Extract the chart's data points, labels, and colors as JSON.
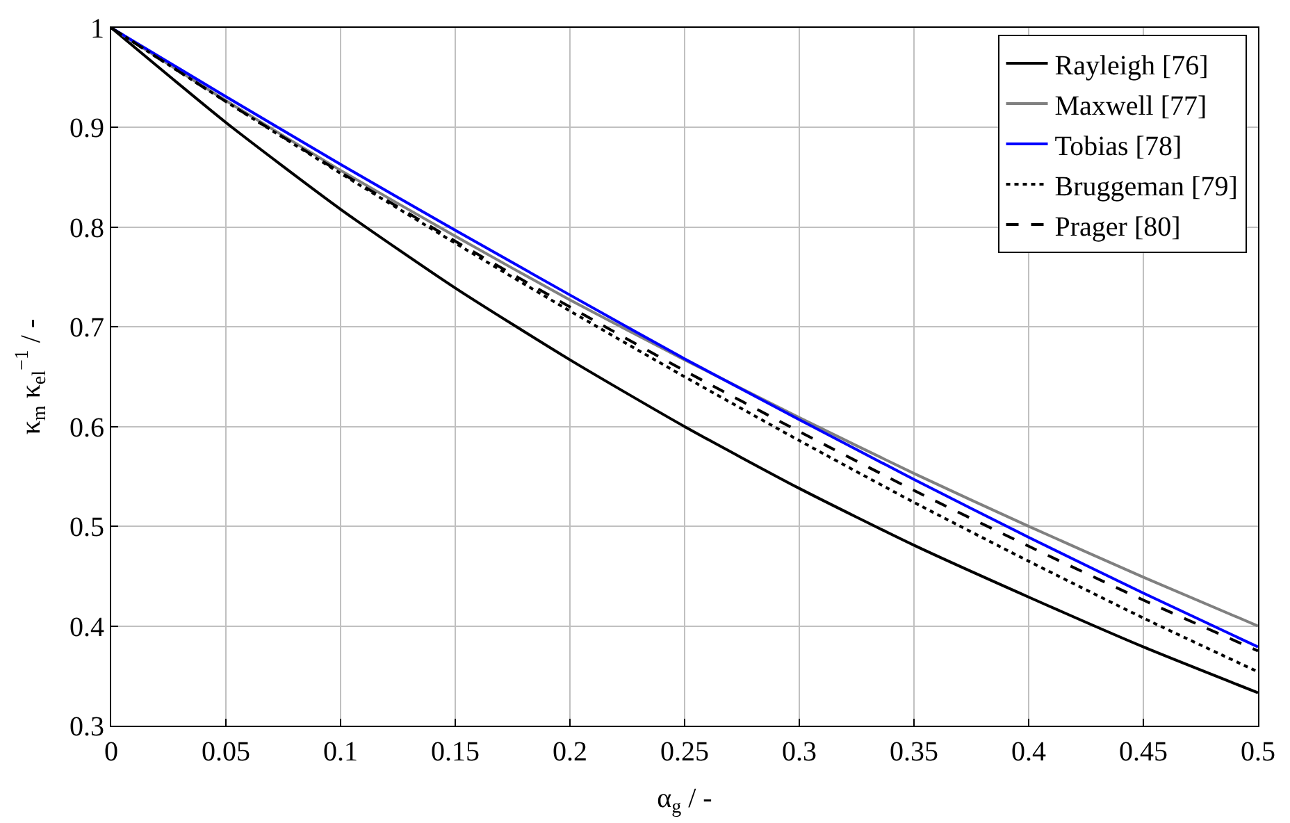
{
  "chart_data": {
    "type": "line",
    "xlabel": "α$_{g}$ / -",
    "ylabel": "κ$_{m}$ κ$_{el}$$^{−1}$ / -",
    "x": [
      0,
      0.05,
      0.1,
      0.15,
      0.2,
      0.25,
      0.3,
      0.35,
      0.4,
      0.45,
      0.5
    ],
    "series": [
      {
        "name": "Rayleigh [76]",
        "color": "#000000",
        "line_style": "solid",
        "values": [
          1,
          0.905,
          0.818,
          0.739,
          0.667,
          0.6,
          0.538,
          0.481,
          0.429,
          0.379,
          0.333
        ]
      },
      {
        "name": "Maxwell [77]",
        "color": "#808080",
        "line_style": "solid",
        "values": [
          1,
          0.927,
          0.857,
          0.791,
          0.727,
          0.667,
          0.609,
          0.553,
          0.5,
          0.449,
          0.4
        ]
      },
      {
        "name": "Tobias [78]",
        "color": "#0000ff",
        "line_style": "solid",
        "values": [
          1,
          0.931,
          0.863,
          0.797,
          0.732,
          0.668,
          0.607,
          0.547,
          0.489,
          0.433,
          0.379
        ]
      },
      {
        "name": "Bruggeman [79]",
        "color": "#000000",
        "line_style": "dotted",
        "values": [
          1,
          0.926,
          0.854,
          0.784,
          0.716,
          0.65,
          0.586,
          0.524,
          0.465,
          0.408,
          0.354
        ]
      },
      {
        "name": "Prager [80]",
        "color": "#000000",
        "line_style": "dashed",
        "values": [
          1,
          0.926,
          0.855,
          0.786,
          0.72,
          0.656,
          0.595,
          0.536,
          0.48,
          0.426,
          0.375
        ]
      }
    ],
    "xlim": [
      0,
      0.5
    ],
    "ylim": [
      0.3,
      1
    ],
    "xticks": [
      0,
      0.05,
      0.1,
      0.15,
      0.2,
      0.25,
      0.3,
      0.35,
      0.4,
      0.45,
      0.5
    ],
    "yticks": [
      0.3,
      0.4,
      0.5,
      0.6,
      0.7,
      0.8,
      0.9,
      1
    ],
    "grid": true,
    "legend": "top right",
    "marker": "none"
  }
}
